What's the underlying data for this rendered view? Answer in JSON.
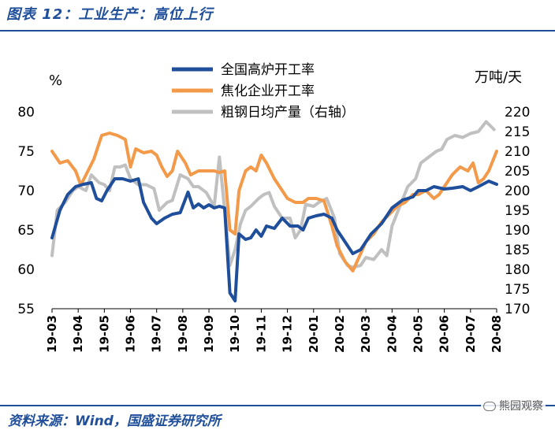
{
  "header": {
    "title": "图表 12：工业生产：高位上行"
  },
  "footer": {
    "source": "资料来源：Wind，国盛证券研究所",
    "watermark": "熊园观察"
  },
  "colors": {
    "title": "#1f4e9b",
    "series1": "#1f4e9b",
    "series2": "#f39a4a",
    "series3": "#c0c0c0"
  },
  "chart_data": {
    "type": "line",
    "left_unit": "%",
    "right_unit": "万吨/天",
    "left_axis": {
      "min": 55,
      "max": 80,
      "ticks": [
        "55",
        "60",
        "65",
        "70",
        "75",
        "80"
      ]
    },
    "right_axis": {
      "min": 170,
      "max": 220,
      "ticks": [
        "170",
        "175",
        "180",
        "185",
        "190",
        "195",
        "200",
        "205",
        "210",
        "215",
        "220"
      ]
    },
    "x_ticks": [
      "19-03",
      "19-04",
      "19-05",
      "19-06",
      "19-07",
      "19-08",
      "19-09",
      "19-10",
      "19-11",
      "19-12",
      "20-01",
      "20-02",
      "20-03",
      "20-04",
      "20-05",
      "20-06",
      "20-07",
      "20-08"
    ],
    "x_range": [
      0,
      17
    ],
    "legend_position": "top-center",
    "series": [
      {
        "name": "全国高炉开工率",
        "axis": "left",
        "points": [
          [
            0,
            64
          ],
          [
            0.3,
            67.5
          ],
          [
            0.6,
            69.5
          ],
          [
            0.9,
            70.5
          ],
          [
            1.2,
            70.8
          ],
          [
            1.5,
            71
          ],
          [
            1.7,
            69
          ],
          [
            1.9,
            68.7
          ],
          [
            2.1,
            70
          ],
          [
            2.4,
            71.5
          ],
          [
            2.7,
            71.5
          ],
          [
            3.0,
            71.2
          ],
          [
            3.3,
            71.5
          ],
          [
            3.5,
            68.5
          ],
          [
            3.8,
            66.5
          ],
          [
            4.0,
            65.8
          ],
          [
            4.3,
            66.5
          ],
          [
            4.6,
            67
          ],
          [
            4.9,
            67.2
          ],
          [
            5.2,
            69.8
          ],
          [
            5.4,
            67.8
          ],
          [
            5.6,
            68.3
          ],
          [
            5.8,
            67.8
          ],
          [
            6.0,
            68.2
          ],
          [
            6.2,
            67.8
          ],
          [
            6.4,
            68
          ],
          [
            6.6,
            67.8
          ],
          [
            6.8,
            57
          ],
          [
            7.0,
            56
          ],
          [
            7.15,
            64.5
          ],
          [
            7.4,
            63.8
          ],
          [
            7.6,
            64
          ],
          [
            7.8,
            65
          ],
          [
            8.0,
            64.2
          ],
          [
            8.2,
            65.5
          ],
          [
            8.5,
            65.2
          ],
          [
            8.8,
            66.5
          ],
          [
            9.1,
            65.5
          ],
          [
            9.4,
            65.5
          ],
          [
            9.6,
            65
          ],
          [
            9.8,
            66.5
          ],
          [
            10.1,
            66.8
          ],
          [
            10.4,
            67
          ],
          [
            10.7,
            66.5
          ],
          [
            10.9,
            65
          ],
          [
            11.2,
            63.5
          ],
          [
            11.5,
            62
          ],
          [
            11.8,
            62.5
          ],
          [
            12.2,
            64.5
          ],
          [
            12.6,
            65.8
          ],
          [
            13.0,
            67.8
          ],
          [
            13.4,
            68.8
          ],
          [
            13.8,
            69.2
          ],
          [
            14.0,
            70
          ],
          [
            14.3,
            70
          ],
          [
            14.6,
            70.5
          ],
          [
            15.0,
            70.2
          ],
          [
            15.3,
            70.3
          ],
          [
            15.7,
            70.5
          ],
          [
            16.0,
            70
          ],
          [
            16.3,
            70.5
          ],
          [
            16.7,
            71.2
          ],
          [
            17.0,
            70.8
          ]
        ]
      },
      {
        "name": "焦化企业开工率",
        "axis": "left",
        "points": [
          [
            0,
            75
          ],
          [
            0.3,
            73.5
          ],
          [
            0.6,
            73.8
          ],
          [
            0.9,
            72.5
          ],
          [
            1.1,
            70.7
          ],
          [
            1.3,
            72
          ],
          [
            1.6,
            74
          ],
          [
            1.9,
            77
          ],
          [
            2.2,
            77.3
          ],
          [
            2.5,
            77
          ],
          [
            2.8,
            76.5
          ],
          [
            3.0,
            73
          ],
          [
            3.2,
            75.3
          ],
          [
            3.5,
            74.8
          ],
          [
            3.8,
            75
          ],
          [
            4.0,
            74.5
          ],
          [
            4.2,
            73
          ],
          [
            4.4,
            71.8
          ],
          [
            4.6,
            72.5
          ],
          [
            4.8,
            75
          ],
          [
            5.1,
            73.5
          ],
          [
            5.3,
            72
          ],
          [
            5.6,
            72.5
          ],
          [
            5.9,
            72.5
          ],
          [
            6.2,
            72.5
          ],
          [
            6.4,
            72.3
          ],
          [
            6.6,
            72.5
          ],
          [
            6.8,
            65
          ],
          [
            7.0,
            64.5
          ],
          [
            7.15,
            70
          ],
          [
            7.4,
            72.5
          ],
          [
            7.6,
            73
          ],
          [
            7.8,
            72.5
          ],
          [
            8.0,
            74.5
          ],
          [
            8.2,
            73.5
          ],
          [
            8.5,
            71.5
          ],
          [
            8.8,
            70
          ],
          [
            9.0,
            69
          ],
          [
            9.3,
            68.5
          ],
          [
            9.6,
            68.5
          ],
          [
            9.8,
            69
          ],
          [
            10.1,
            69
          ],
          [
            10.4,
            68.7
          ],
          [
            10.7,
            65.5
          ],
          [
            10.9,
            63
          ],
          [
            11.2,
            61
          ],
          [
            11.5,
            59.8
          ],
          [
            11.8,
            62
          ],
          [
            12.0,
            63.5
          ],
          [
            12.3,
            64.5
          ],
          [
            12.6,
            66
          ],
          [
            12.9,
            67
          ],
          [
            13.2,
            68
          ],
          [
            13.5,
            68.5
          ],
          [
            13.8,
            69.5
          ],
          [
            14.0,
            69.5
          ],
          [
            14.3,
            70
          ],
          [
            14.6,
            69
          ],
          [
            14.8,
            69.5
          ],
          [
            15.0,
            70.5
          ],
          [
            15.3,
            72
          ],
          [
            15.6,
            73
          ],
          [
            15.9,
            72.5
          ],
          [
            16.1,
            73.5
          ],
          [
            16.3,
            71
          ],
          [
            16.5,
            71.5
          ],
          [
            16.7,
            72.5
          ],
          [
            17.0,
            75
          ]
        ]
      },
      {
        "name": "粗钢日均产量（右轴）",
        "axis": "right",
        "points": [
          [
            0,
            183.5
          ],
          [
            0.2,
            195
          ],
          [
            0.5,
            197
          ],
          [
            0.8,
            200
          ],
          [
            1.0,
            201
          ],
          [
            1.3,
            200
          ],
          [
            1.5,
            204
          ],
          [
            1.8,
            202
          ],
          [
            2.0,
            201.5
          ],
          [
            2.2,
            200
          ],
          [
            2.4,
            206
          ],
          [
            2.6,
            206
          ],
          [
            2.8,
            206.5
          ],
          [
            3.0,
            203
          ],
          [
            3.3,
            201.5
          ],
          [
            3.6,
            201.5
          ],
          [
            3.9,
            200.5
          ],
          [
            4.1,
            195
          ],
          [
            4.4,
            197
          ],
          [
            4.6,
            197.5
          ],
          [
            4.9,
            204
          ],
          [
            5.2,
            203
          ],
          [
            5.4,
            201
          ],
          [
            5.6,
            201
          ],
          [
            5.9,
            199.5
          ],
          [
            6.2,
            196
          ],
          [
            6.4,
            208.5
          ],
          [
            6.6,
            195
          ],
          [
            6.8,
            181
          ],
          [
            7.0,
            185
          ],
          [
            7.2,
            191.5
          ],
          [
            7.4,
            195
          ],
          [
            7.6,
            196
          ],
          [
            7.9,
            198
          ],
          [
            8.1,
            199
          ],
          [
            8.3,
            199.5
          ],
          [
            8.5,
            196
          ],
          [
            8.8,
            193
          ],
          [
            9.1,
            193
          ],
          [
            9.3,
            188
          ],
          [
            9.5,
            190
          ],
          [
            9.7,
            196.5
          ],
          [
            10.0,
            196
          ],
          [
            10.2,
            197
          ],
          [
            10.5,
            198
          ],
          [
            10.8,
            193
          ],
          [
            11.0,
            184
          ],
          [
            11.3,
            181
          ],
          [
            11.5,
            180.5
          ],
          [
            11.8,
            181
          ],
          [
            12.0,
            183
          ],
          [
            12.3,
            182.5
          ],
          [
            12.6,
            185
          ],
          [
            12.8,
            183.5
          ],
          [
            13.0,
            191
          ],
          [
            13.3,
            196
          ],
          [
            13.6,
            201
          ],
          [
            13.9,
            203
          ],
          [
            14.1,
            207
          ],
          [
            14.4,
            208.5
          ],
          [
            14.7,
            210
          ],
          [
            14.9,
            210.5
          ],
          [
            15.1,
            213
          ],
          [
            15.4,
            214
          ],
          [
            15.7,
            213.5
          ],
          [
            16.0,
            214.5
          ],
          [
            16.3,
            215
          ],
          [
            16.6,
            217.5
          ],
          [
            16.9,
            215.5
          ]
        ]
      }
    ]
  }
}
